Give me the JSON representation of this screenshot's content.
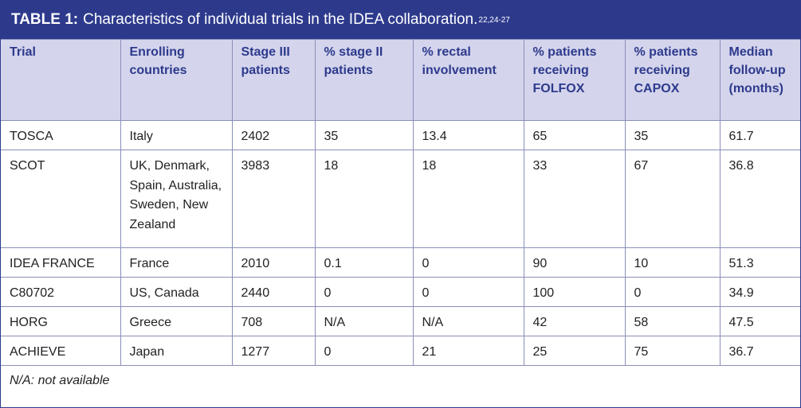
{
  "table": {
    "label": "TABLE 1:",
    "caption": "Characteristics of individual trials in the IDEA collaboration.",
    "refs": "22,24-27",
    "headers": [
      "Trial",
      "Enrolling countries",
      "Stage III patients",
      "% stage II patients",
      "% rectal involvement",
      "% patients receiving FOLFOX",
      "% patients receiving CAPOX",
      "Median follow-up (months)"
    ],
    "rows": [
      [
        "TOSCA",
        "Italy",
        "2402",
        "35",
        "13.4",
        "65",
        "35",
        "61.7"
      ],
      [
        "SCOT",
        "UK, Denmark, Spain, Australia, Sweden, New Zealand",
        "3983",
        "18",
        "18",
        "33",
        "67",
        "36.8"
      ],
      [
        "IDEA FRANCE",
        "France",
        "2010",
        "0.1",
        "0",
        "90",
        "10",
        "51.3"
      ],
      [
        "C80702",
        "US, Canada",
        "2440",
        "0",
        "0",
        "100",
        "0",
        "34.9"
      ],
      [
        "HORG",
        "Greece",
        "708",
        "N/A",
        "N/A",
        "42",
        "58",
        "47.5"
      ],
      [
        "ACHIEVE",
        "Japan",
        "1277",
        "0",
        "21",
        "25",
        "75",
        "36.7"
      ]
    ],
    "footnote": "N/A: not available"
  },
  "colors": {
    "title_bg": "#2d3a8c",
    "header_bg": "#d4d4ec",
    "header_text": "#2d3a8c",
    "border": "#8a8fb8"
  }
}
